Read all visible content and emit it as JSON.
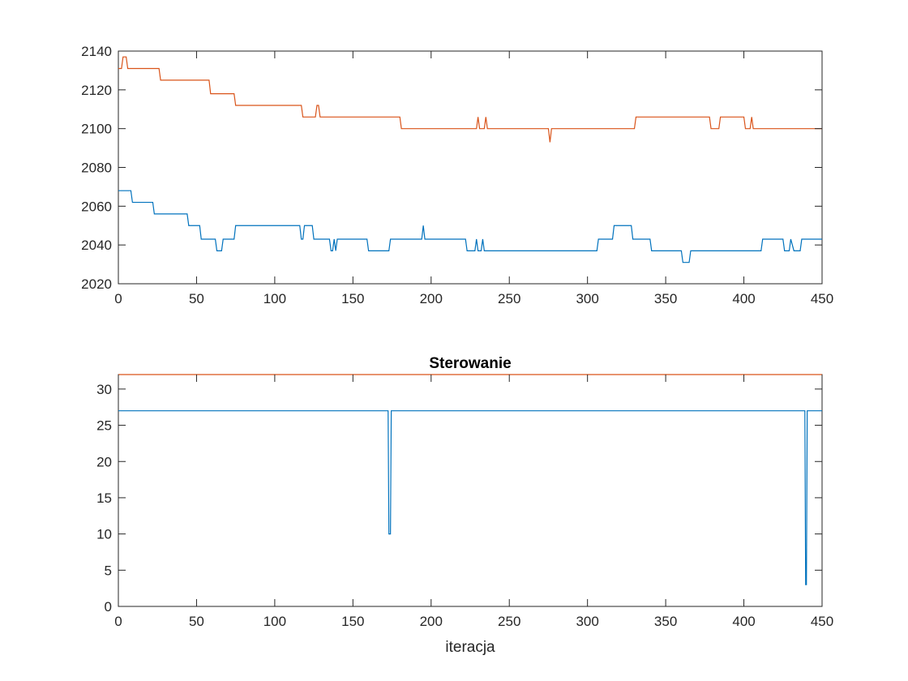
{
  "chart_data": [
    {
      "type": "line",
      "title": "",
      "xlabel": "",
      "ylabel": "",
      "xlim": [
        0,
        450
      ],
      "ylim": [
        2020,
        2140
      ],
      "xticks": [
        0,
        50,
        100,
        150,
        200,
        250,
        300,
        350,
        400,
        450
      ],
      "yticks": [
        2020,
        2040,
        2060,
        2080,
        2100,
        2120,
        2140
      ],
      "xtick_labels": [
        "0",
        "50",
        "100",
        "150",
        "200",
        "250",
        "300",
        "350",
        "400",
        "450"
      ],
      "ytick_labels": [
        "2020",
        "2040",
        "2060",
        "2080",
        "2100",
        "2120",
        "2140"
      ],
      "grid": false,
      "legend": "none",
      "series": [
        {
          "color": "#D95319",
          "x": [
            0,
            2,
            3,
            5,
            6,
            26,
            27,
            58,
            59,
            74,
            75,
            117,
            118,
            126,
            127,
            128,
            129,
            180,
            181,
            229,
            230,
            231,
            234,
            235,
            236,
            275,
            276,
            277,
            330,
            331,
            378,
            379,
            384,
            385,
            400,
            401,
            404,
            405,
            406,
            450
          ],
          "values": [
            2131,
            2131,
            2137,
            2137,
            2131,
            2131,
            2125,
            2125,
            2118,
            2118,
            2112,
            2112,
            2106,
            2106,
            2112,
            2112,
            2106,
            2106,
            2100,
            2100,
            2106,
            2100,
            2100,
            2106,
            2100,
            2100,
            2093,
            2100,
            2100,
            2106,
            2106,
            2100,
            2100,
            2106,
            2106,
            2100,
            2100,
            2106,
            2100,
            2100
          ]
        },
        {
          "color": "#0072BD",
          "x": [
            0,
            8,
            9,
            22,
            23,
            44,
            45,
            52,
            53,
            62,
            63,
            66,
            67,
            74,
            75,
            116,
            117,
            118,
            119,
            124,
            125,
            135,
            136,
            137,
            138,
            139,
            140,
            159,
            160,
            173,
            174,
            194,
            195,
            196,
            222,
            223,
            228,
            229,
            230,
            232,
            233,
            234,
            235,
            306,
            307,
            316,
            317,
            328,
            329,
            340,
            341,
            360,
            361,
            365,
            366,
            411,
            412,
            425,
            426,
            429,
            430,
            432,
            433,
            436,
            437,
            450
          ],
          "values": [
            2068,
            2068,
            2062,
            2062,
            2056,
            2056,
            2050,
            2050,
            2043,
            2043,
            2037,
            2037,
            2043,
            2043,
            2050,
            2050,
            2043,
            2043,
            2050,
            2050,
            2043,
            2043,
            2037,
            2037,
            2043,
            2037,
            2043,
            2043,
            2037,
            2037,
            2043,
            2043,
            2050,
            2043,
            2043,
            2037,
            2037,
            2043,
            2037,
            2037,
            2043,
            2037,
            2037,
            2037,
            2043,
            2043,
            2050,
            2050,
            2043,
            2043,
            2037,
            2037,
            2031,
            2031,
            2037,
            2037,
            2043,
            2043,
            2037,
            2037,
            2043,
            2037,
            2037,
            2037,
            2043,
            2043
          ]
        }
      ]
    },
    {
      "type": "line",
      "title": "Sterowanie",
      "xlabel": "iteracja",
      "ylabel": "",
      "xlim": [
        0,
        450
      ],
      "ylim": [
        0,
        32
      ],
      "xticks": [
        0,
        50,
        100,
        150,
        200,
        250,
        300,
        350,
        400,
        450
      ],
      "yticks": [
        0,
        5,
        10,
        15,
        20,
        25,
        30
      ],
      "xtick_labels": [
        "0",
        "50",
        "100",
        "150",
        "200",
        "250",
        "300",
        "350",
        "400",
        "450"
      ],
      "ytick_labels": [
        "0",
        "5",
        "10",
        "15",
        "20",
        "25",
        "30"
      ],
      "grid": false,
      "legend": "none",
      "series": [
        {
          "color": "#D95319",
          "x": [
            0,
            450
          ],
          "values": [
            32,
            32
          ]
        },
        {
          "color": "#0072BD",
          "x": [
            0,
            172.5,
            173,
            174,
            174.5,
            439,
            439.5,
            440,
            440.5,
            450
          ],
          "values": [
            27,
            27,
            10,
            10,
            27,
            27,
            3,
            3,
            27,
            27
          ]
        }
      ]
    }
  ]
}
